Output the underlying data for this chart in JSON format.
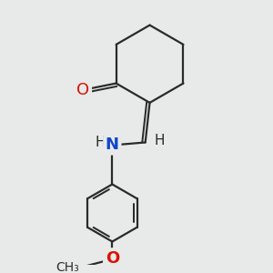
{
  "background_color": "#e8eaea",
  "bond_color": "#2a2a2a",
  "oxygen_color": "#dd1100",
  "nitrogen_color": "#1144cc",
  "font_size_atom": 13,
  "font_size_h": 11,
  "line_width": 1.6,
  "dbo": 0.06,
  "figsize": [
    3.0,
    3.0
  ],
  "dpi": 100,
  "xlim": [
    0,
    6.0
  ],
  "ylim": [
    0,
    6.0
  ]
}
